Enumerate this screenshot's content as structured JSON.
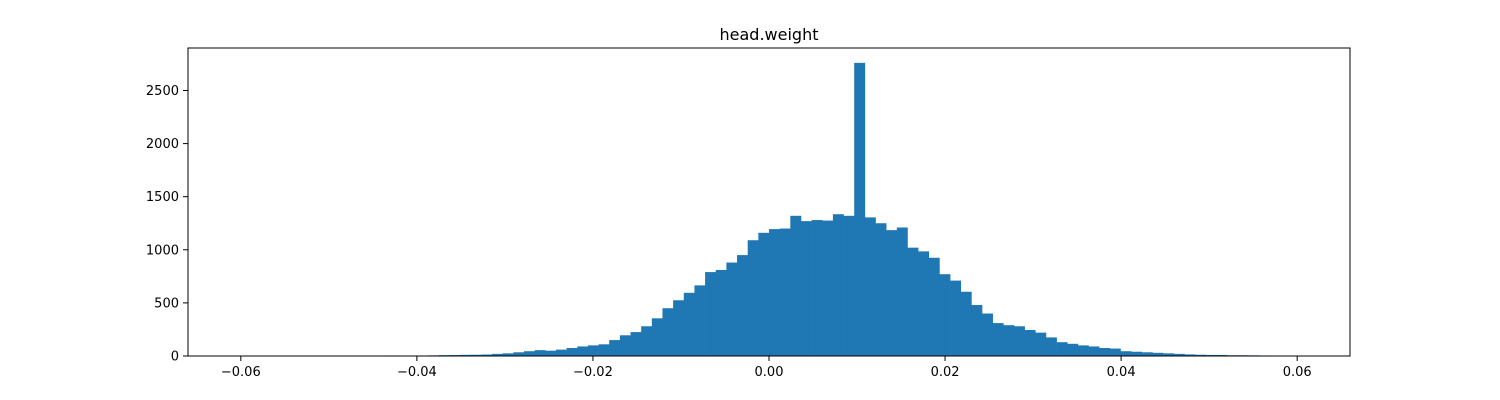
{
  "chart_data": {
    "type": "bar",
    "title": "head.weight",
    "xlabel": "",
    "ylabel": "",
    "xlim": [
      -0.066,
      0.066
    ],
    "ylim": [
      0,
      2900
    ],
    "grid": false,
    "color": "#1f77b4",
    "x_ticks": [
      -0.06,
      -0.04,
      -0.02,
      0.0,
      0.02,
      0.04,
      0.06
    ],
    "x_tick_labels": [
      "−0.06",
      "−0.04",
      "−0.02",
      "0.00",
      "0.02",
      "0.04",
      "0.06"
    ],
    "y_ticks": [
      0,
      500,
      1000,
      1500,
      2000,
      2500
    ],
    "y_tick_labels": [
      "0",
      "500",
      "1000",
      "1500",
      "2000",
      "2500"
    ],
    "bin_start": -0.0605,
    "bin_width": 0.00121,
    "values": [
      1,
      0,
      0,
      0,
      0,
      1,
      0,
      0,
      1,
      0,
      1,
      2,
      2,
      3,
      5,
      3,
      4,
      3,
      6,
      8,
      9,
      11,
      12,
      14,
      20,
      25,
      35,
      45,
      55,
      50,
      60,
      75,
      90,
      100,
      110,
      150,
      195,
      225,
      280,
      355,
      450,
      525,
      595,
      665,
      790,
      810,
      880,
      950,
      1090,
      1160,
      1195,
      1200,
      1320,
      1270,
      1280,
      1275,
      1335,
      1320,
      2760,
      1305,
      1250,
      1185,
      1210,
      1020,
      985,
      925,
      770,
      710,
      605,
      480,
      400,
      310,
      290,
      280,
      245,
      220,
      175,
      130,
      115,
      100,
      90,
      75,
      70,
      45,
      40,
      35,
      30,
      25,
      20,
      15,
      12,
      10,
      10,
      7,
      7,
      6,
      5,
      3,
      2,
      2,
      1,
      1,
      0,
      0,
      0,
      0,
      0,
      0,
      0,
      0
    ]
  }
}
